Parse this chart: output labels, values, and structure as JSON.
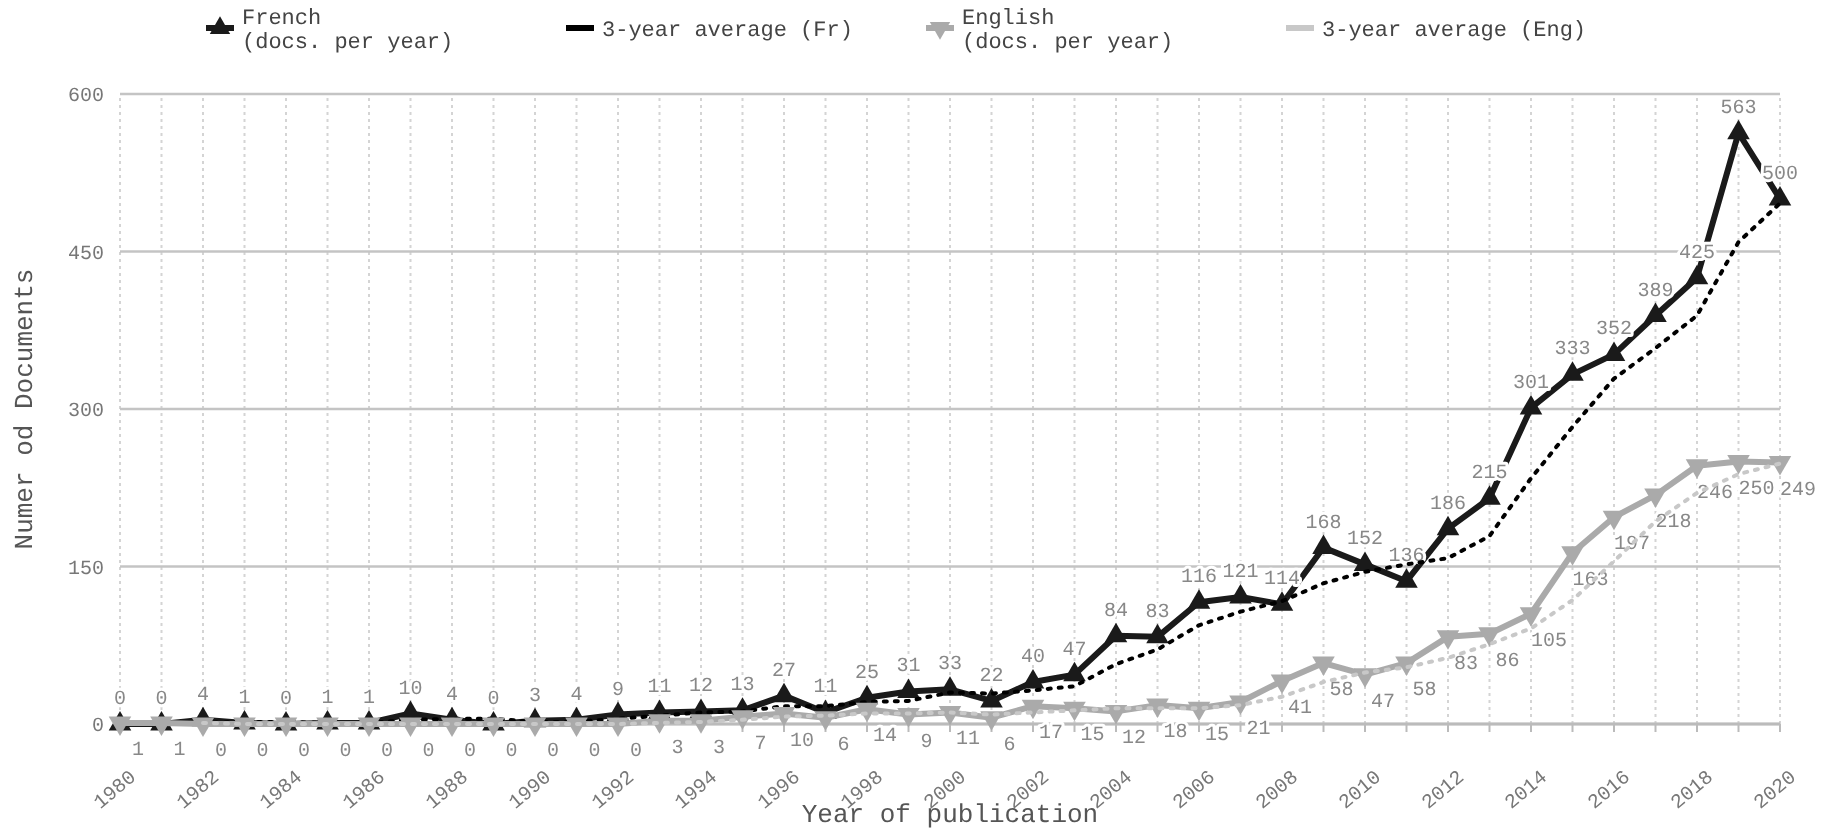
{
  "chart_data": {
    "type": "line",
    "xlabel": "Year of publication",
    "ylabel": "Numer od Documents",
    "x": [
      1980,
      1981,
      1982,
      1983,
      1984,
      1985,
      1986,
      1987,
      1988,
      1989,
      1990,
      1991,
      1992,
      1993,
      1994,
      1995,
      1996,
      1997,
      1998,
      1999,
      2000,
      2001,
      2002,
      2003,
      2004,
      2005,
      2006,
      2007,
      2008,
      2009,
      2010,
      2011,
      2012,
      2013,
      2014,
      2015,
      2016,
      2017,
      2018,
      2019,
      2020
    ],
    "series": [
      {
        "name": "French\n(docs. per year)",
        "color": "#1a1a1a",
        "marker": "triangle",
        "line_style": "solid",
        "data_labels": true,
        "values": [
          0,
          0,
          4,
          1,
          0,
          1,
          1,
          10,
          4,
          0,
          3,
          4,
          9,
          11,
          12,
          13,
          27,
          11,
          25,
          31,
          33,
          22,
          40,
          47,
          84,
          83,
          116,
          121,
          114,
          168,
          152,
          136,
          186,
          215,
          301,
          333,
          352,
          389,
          425,
          563,
          500
        ]
      },
      {
        "name": "3-year average (Fr)",
        "color": "#000000",
        "marker": "none",
        "line_style": "dotted",
        "values": [
          null,
          null,
          1,
          2,
          2,
          1,
          1,
          4,
          5,
          5,
          2,
          2,
          5,
          8,
          11,
          12,
          17,
          17,
          21,
          22,
          30,
          29,
          32,
          36,
          57,
          71,
          94,
          107,
          117,
          134,
          145,
          152,
          158,
          179,
          234,
          283,
          329,
          358,
          389,
          459,
          496
        ]
      },
      {
        "name": "English\n(docs. per year)",
        "color": "#aaaaaa",
        "marker": "triangle-down",
        "line_style": "solid",
        "data_labels": true,
        "values": [
          1,
          1,
          0,
          0,
          0,
          0,
          0,
          0,
          0,
          0,
          0,
          0,
          0,
          3,
          3,
          7,
          10,
          6,
          14,
          9,
          11,
          6,
          17,
          15,
          12,
          18,
          15,
          21,
          41,
          58,
          47,
          58,
          83,
          86,
          105,
          163,
          197,
          218,
          246,
          250,
          249
        ]
      },
      {
        "name": "3-year average (Eng)",
        "color": "#c8c8c8",
        "marker": "none",
        "line_style": "dotted",
        "values": [
          null,
          null,
          1,
          0,
          0,
          0,
          0,
          0,
          0,
          0,
          0,
          0,
          0,
          1,
          2,
          4,
          7,
          8,
          10,
          10,
          11,
          9,
          11,
          13,
          15,
          15,
          15,
          18,
          26,
          40,
          49,
          54,
          63,
          76,
          91,
          118,
          155,
          193,
          220,
          238,
          248
        ]
      }
    ],
    "xlim": [
      1980,
      2020
    ],
    "xticks": [
      1980,
      {
        "value": 1981,
        "label": null
      },
      1982,
      {
        "value": 1983,
        "label": null
      },
      1984,
      {
        "value": 1985,
        "label": null
      },
      1986,
      {
        "value": 1987,
        "label": null
      },
      1988,
      {
        "value": 1989,
        "label": null
      },
      1990,
      {
        "value": 1991,
        "label": null
      },
      1992,
      {
        "value": 1993,
        "label": null
      },
      1994,
      {
        "value": 1995,
        "label": null
      },
      1996,
      {
        "value": 1997,
        "label": null
      },
      1998,
      {
        "value": 1999,
        "label": null
      },
      2000,
      {
        "value": 2001,
        "label": null
      },
      2002,
      {
        "value": 2003,
        "label": null
      },
      2004,
      {
        "value": 2005,
        "label": null
      },
      2006,
      {
        "value": 2007,
        "label": null
      },
      2008,
      {
        "value": 2009,
        "label": null
      },
      2010,
      {
        "value": 2011,
        "label": null
      },
      2012,
      {
        "value": 2013,
        "label": null
      },
      2014,
      {
        "value": 2015,
        "label": null
      },
      2016,
      {
        "value": 2017,
        "label": null
      },
      2018,
      {
        "value": 2019,
        "label": null
      },
      2020
    ],
    "ylim": [
      0,
      600
    ],
    "yticks": [
      0,
      150,
      300,
      450,
      600
    ],
    "grid": true,
    "legend": "top"
  }
}
